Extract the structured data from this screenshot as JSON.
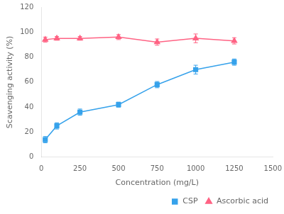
{
  "chart_data": {
    "type": "line",
    "x": [
      25,
      100,
      250,
      500,
      750,
      1000,
      1250
    ],
    "series": [
      {
        "name": "CSP",
        "marker": "square",
        "values": [
          14,
          25,
          36,
          42,
          58,
          70,
          76
        ],
        "yerr": [
          2.5,
          2.5,
          2.5,
          2.0,
          2.5,
          3.5,
          2.5
        ]
      },
      {
        "name": "Ascorbic acid",
        "marker": "triangle",
        "values": [
          94,
          95,
          95,
          96,
          92,
          95,
          93
        ],
        "yerr": [
          2.0,
          1.5,
          1.5,
          2.0,
          2.5,
          3.5,
          2.5
        ]
      }
    ],
    "xlabel": "Concentration (mg/L)",
    "ylabel": "Scavenging activity (%)",
    "xlim": [
      0,
      1500
    ],
    "ylim": [
      0,
      120
    ],
    "xticks": [
      0,
      250,
      500,
      750,
      1000,
      1250,
      1500
    ],
    "yticks": [
      0,
      20,
      40,
      60,
      80,
      100,
      120
    ],
    "grid": false,
    "legend": "lower right"
  }
}
